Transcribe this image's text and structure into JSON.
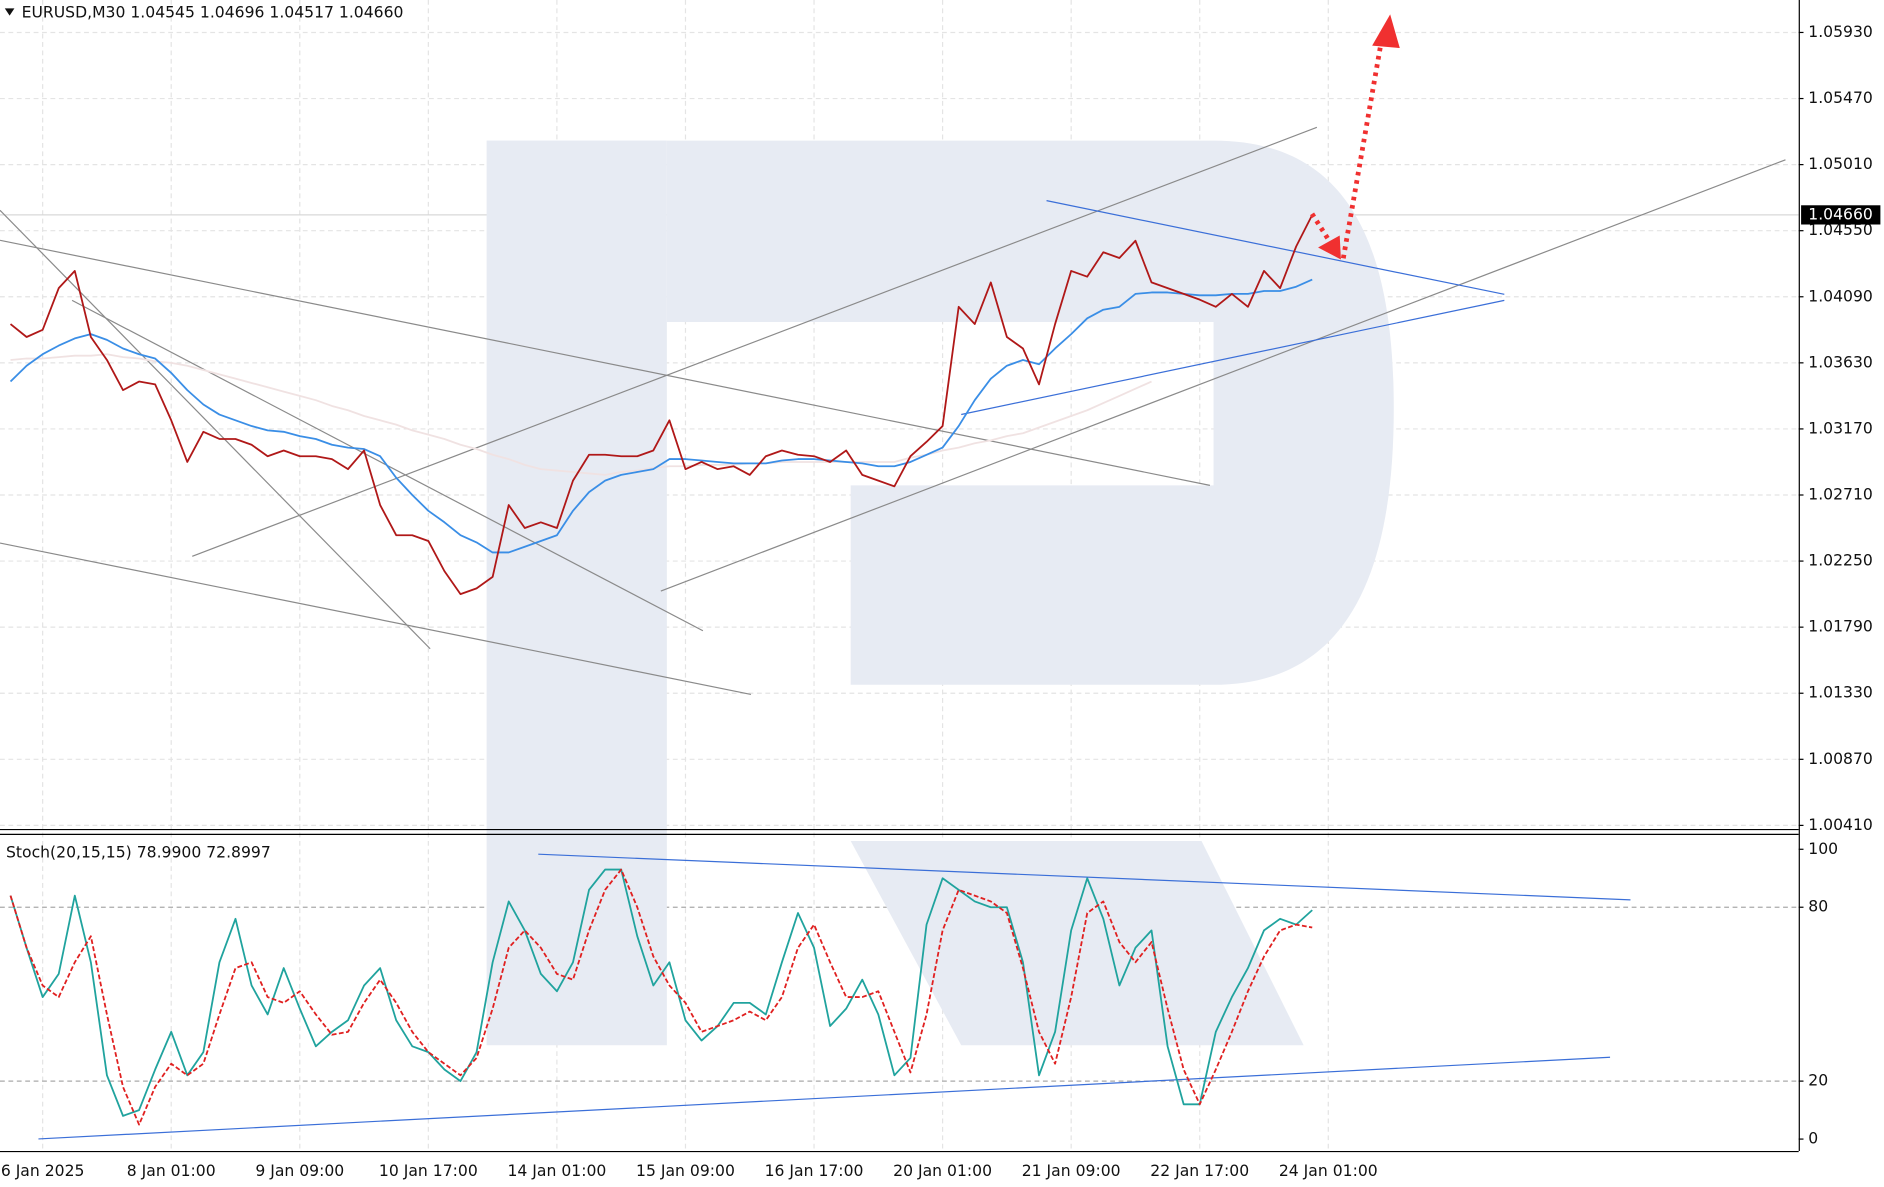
{
  "chart_data": [
    {
      "type": "line",
      "title": "EURUSD,M30  1.04545 1.04696 1.04517 1.04660",
      "ylim": [
        1.00385,
        1.06156
      ],
      "yticks": [
        {
          "value": 1.0593,
          "label": "1.05930"
        },
        {
          "value": 1.0547,
          "label": "1.05470"
        },
        {
          "value": 1.0501,
          "label": "1.05010"
        },
        {
          "value": 1.0455,
          "label": "1.04550"
        },
        {
          "value": 1.0409,
          "label": "1.04090"
        },
        {
          "value": 1.0363,
          "label": "1.03630"
        },
        {
          "value": 1.0317,
          "label": "1.03170"
        },
        {
          "value": 1.0271,
          "label": "1.02710"
        },
        {
          "value": 1.0225,
          "label": "1.02250"
        },
        {
          "value": 1.0179,
          "label": "1.01790"
        },
        {
          "value": 1.0133,
          "label": "1.01330"
        },
        {
          "value": 1.0087,
          "label": "1.00870"
        },
        {
          "value": 1.0041,
          "label": "1.00410"
        }
      ],
      "grid": true,
      "last": {
        "value": 1.0466,
        "label": "1.04660"
      },
      "series": [
        {
          "color": "#f0e2e2",
          "values": [
            1.0365,
            1.0366,
            1.0366,
            1.0367,
            1.0368,
            1.0368,
            1.0369,
            1.0367,
            1.0366,
            1.0364,
            1.0363,
            1.0361,
            1.0358,
            1.0355,
            1.0352,
            1.0349,
            1.0346,
            1.0343,
            1.034,
            1.0337,
            1.0333,
            1.033,
            1.0326,
            1.0323,
            1.032,
            1.0316,
            1.0313,
            1.031,
            1.0306,
            1.0303,
            1.0299,
            1.0296,
            1.0292,
            1.0289,
            1.0288,
            1.0287,
            1.0286,
            1.0285,
            1.0287,
            1.0288,
            1.029,
            1.0291,
            1.0291,
            1.0292,
            1.0292,
            1.0292,
            1.0293,
            1.0293,
            1.0294,
            1.0294,
            1.0294,
            1.0294,
            1.0294,
            1.0294,
            1.0294,
            1.0294,
            1.0297,
            1.0299,
            1.0302,
            1.0304,
            1.0307,
            1.0309,
            1.0312,
            1.0314,
            1.0318,
            1.0322,
            1.0326,
            1.033,
            1.0335,
            1.034,
            1.0345,
            1.035,
            null,
            null,
            null,
            null,
            null,
            null,
            null,
            null,
            null,
            null,
            null
          ]
        },
        {
          "color": "#3a8ee6",
          "values": [
            1.035,
            1.0361,
            1.0369,
            1.0375,
            1.038,
            1.0383,
            1.0379,
            1.0373,
            1.0369,
            1.0366,
            1.0356,
            1.0344,
            1.0334,
            1.0327,
            1.0323,
            1.0319,
            1.0316,
            1.0315,
            1.0312,
            1.031,
            1.0306,
            1.0304,
            1.0303,
            1.0298,
            1.0283,
            1.0271,
            1.026,
            1.0252,
            1.0243,
            1.0238,
            1.0231,
            1.0231,
            1.0235,
            1.0239,
            1.0243,
            1.026,
            1.0273,
            1.0281,
            1.0285,
            1.0287,
            1.0289,
            1.0296,
            1.0296,
            1.0295,
            1.0294,
            1.0293,
            1.0293,
            1.0293,
            1.0295,
            1.0296,
            1.0296,
            1.0295,
            1.0294,
            1.0293,
            1.0291,
            1.0291,
            1.0294,
            1.0299,
            1.0304,
            1.0319,
            1.0337,
            1.0352,
            1.0361,
            1.0365,
            1.0362,
            1.0373,
            1.0383,
            1.0394,
            1.04,
            1.0402,
            1.0411,
            1.0412,
            1.0412,
            1.0411,
            1.041,
            1.041,
            1.0411,
            1.0411,
            1.0413,
            1.0413,
            1.0416,
            1.0421,
            null
          ]
        },
        {
          "color": "#b01818",
          "values": [
            1.039,
            1.0381,
            1.0386,
            1.0415,
            1.0427,
            1.0381,
            1.0365,
            1.0344,
            1.035,
            1.0348,
            1.0323,
            1.0294,
            1.0315,
            1.031,
            1.031,
            1.0306,
            1.0298,
            1.0302,
            1.0298,
            1.0298,
            1.0296,
            1.0289,
            1.0302,
            1.0264,
            1.0243,
            1.0243,
            1.0239,
            1.0218,
            1.0202,
            1.0206,
            1.0214,
            1.0264,
            1.0248,
            1.0252,
            1.0248,
            1.0281,
            1.0299,
            1.0299,
            1.0298,
            1.0298,
            1.0302,
            1.0323,
            1.0289,
            1.0294,
            1.0289,
            1.0291,
            1.0285,
            1.0298,
            1.0302,
            1.0299,
            1.0298,
            1.0294,
            1.0302,
            1.0285,
            1.0281,
            1.0277,
            1.0298,
            1.0308,
            1.0319,
            1.0402,
            1.039,
            1.0419,
            1.0381,
            1.0373,
            1.0348,
            1.039,
            1.0427,
            1.0423,
            1.044,
            1.0436,
            1.0448,
            1.0419,
            1.0415,
            1.0411,
            1.0407,
            1.0402,
            1.0411,
            1.0402,
            1.0427,
            1.0415,
            1.0444,
            1.0466,
            null
          ]
        }
      ]
    },
    {
      "type": "line",
      "title": "Stoch(20,15,15) 78.9900 72.8997",
      "ylim": [
        -4.1,
        104.1
      ],
      "yticks": [
        0,
        20,
        80,
        100
      ],
      "grid": false,
      "levels": [
        20,
        80
      ],
      "categories": [
        null,
        null,
        "6 Jan 2025",
        null,
        null,
        null,
        null,
        null,
        null,
        null,
        "8 Jan 01:00",
        null,
        null,
        null,
        null,
        null,
        null,
        null,
        "9 Jan 09:00",
        null,
        null,
        null,
        null,
        null,
        null,
        null,
        "10 Jan 17:00",
        null,
        null,
        null,
        null,
        null,
        null,
        null,
        "14 Jan 01:00",
        null,
        null,
        null,
        null,
        null,
        null,
        null,
        "15 Jan 09:00",
        null,
        null,
        null,
        null,
        null,
        null,
        null,
        "16 Jan 17:00",
        null,
        null,
        null,
        null,
        null,
        null,
        null,
        "20 Jan 01:00",
        null,
        null,
        null,
        null,
        null,
        null,
        null,
        "21 Jan 09:00",
        null,
        null,
        null,
        null,
        null,
        null,
        null,
        "22 Jan 17:00",
        null,
        null,
        null,
        null,
        null,
        null,
        null,
        "24 Jan 01:00"
      ],
      "series": [
        {
          "color": "#20a39e",
          "dashed": false,
          "values": [
            84,
            66,
            49,
            57,
            84,
            61,
            22,
            8,
            10,
            24,
            37,
            22,
            30,
            61,
            76,
            53,
            43,
            59,
            45,
            32,
            37,
            41,
            53,
            59,
            41,
            32,
            30,
            24,
            20,
            30,
            61,
            82,
            72,
            57,
            51,
            61,
            86,
            93,
            93,
            70,
            53,
            61,
            41,
            34,
            39,
            47,
            47,
            43,
            61,
            78,
            66,
            39,
            45,
            55,
            43,
            22,
            28,
            74,
            90,
            86,
            82,
            80,
            80,
            61,
            22,
            37,
            72,
            90,
            76,
            53,
            66,
            72,
            32,
            12,
            12,
            37,
            49,
            59,
            72,
            76,
            74,
            79,
            null
          ]
        },
        {
          "color": "#e02020",
          "dashed": true,
          "values": [
            84,
            66,
            53,
            49,
            61,
            70,
            43,
            18,
            5,
            18,
            26,
            22,
            26,
            43,
            59,
            61,
            49,
            47,
            51,
            43,
            36,
            37,
            47,
            55,
            47,
            37,
            30,
            26,
            22,
            28,
            45,
            66,
            72,
            66,
            57,
            55,
            72,
            86,
            93,
            80,
            63,
            53,
            47,
            37,
            39,
            41,
            44,
            41,
            49,
            66,
            74,
            61,
            49,
            49,
            51,
            37,
            23,
            43,
            72,
            86,
            84,
            82,
            78,
            59,
            37,
            26,
            49,
            78,
            82,
            68,
            61,
            68,
            45,
            24,
            12,
            24,
            37,
            51,
            63,
            72,
            74,
            73,
            null
          ]
        }
      ]
    }
  ]
}
